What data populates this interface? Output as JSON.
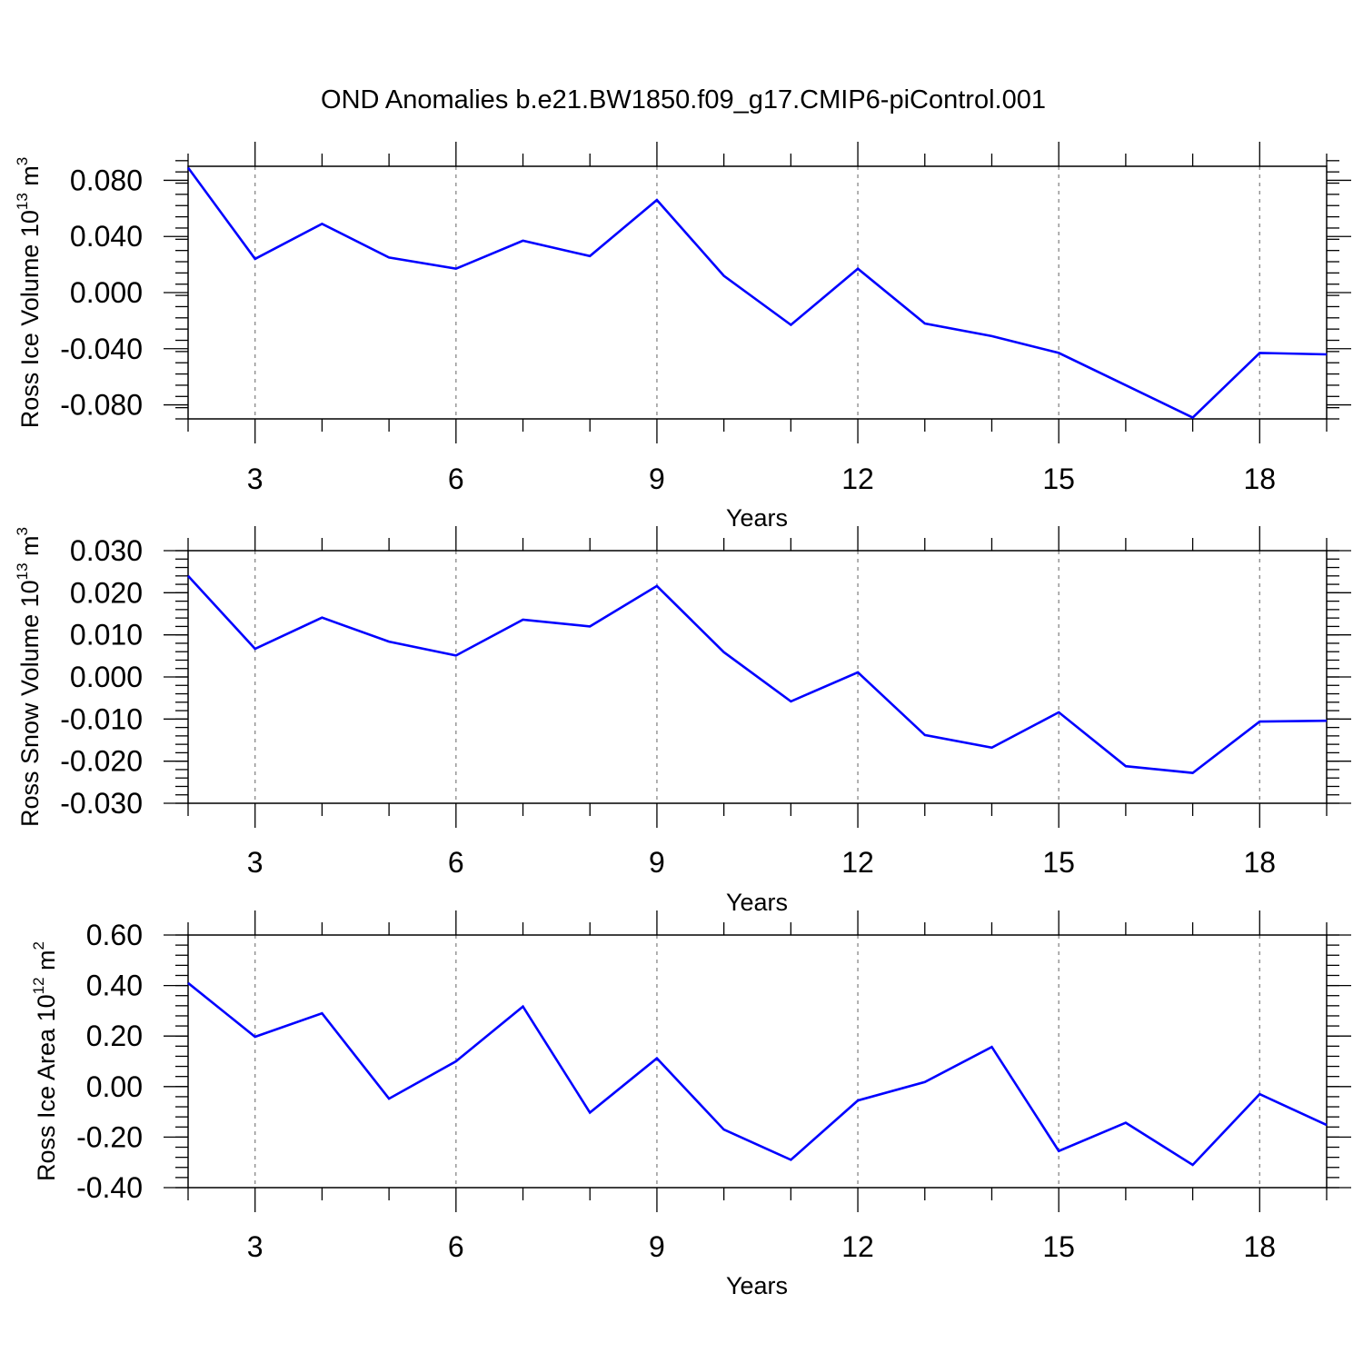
{
  "title": "OND Anomalies b.e21.BW1850.f09_g17.CMIP6-piControl.001",
  "colors": {
    "line": "#0000ff",
    "frame": "#000000",
    "grid": "#888888"
  },
  "chart_data": [
    {
      "type": "line",
      "xlabel": "Years",
      "ylabel": {
        "text": "Ross Ice Volume 10",
        "exp": "13",
        "unit": " m",
        "unit_exp": "3"
      },
      "xlim": [
        2,
        19
      ],
      "ylim": [
        -0.09,
        0.09
      ],
      "x_ticks": [
        3,
        6,
        9,
        12,
        15,
        18
      ],
      "x_tick_labels": [
        "3",
        "6",
        "9",
        "12",
        "15",
        "18"
      ],
      "y_ticks": [
        0.08,
        0.04,
        0.0,
        -0.04,
        -0.08
      ],
      "y_tick_labels": [
        "0.080",
        "0.040",
        "0.000",
        "-0.040",
        "-0.080"
      ],
      "y_minor_step": 0.008,
      "grid": "vertical dashed at major x ticks",
      "x": [
        2,
        3,
        4,
        5,
        6,
        7,
        8,
        9,
        10,
        11,
        12,
        13,
        14,
        15,
        16,
        17,
        18,
        19
      ],
      "series": [
        {
          "values": [
            0.089,
            0.024,
            0.049,
            0.025,
            0.017,
            0.037,
            0.026,
            0.066,
            0.012,
            -0.023,
            0.017,
            -0.022,
            -0.031,
            -0.043,
            -0.066,
            -0.089,
            -0.043,
            -0.044
          ]
        }
      ]
    },
    {
      "type": "line",
      "xlabel": "Years",
      "ylabel": {
        "text": "Ross Snow Volume 10",
        "exp": "13",
        "unit": " m",
        "unit_exp": "3"
      },
      "xlim": [
        2,
        19
      ],
      "ylim": [
        -0.03,
        0.03
      ],
      "x_ticks": [
        3,
        6,
        9,
        12,
        15,
        18
      ],
      "x_tick_labels": [
        "3",
        "6",
        "9",
        "12",
        "15",
        "18"
      ],
      "y_ticks": [
        0.03,
        0.02,
        0.01,
        0.0,
        -0.01,
        -0.02,
        -0.03
      ],
      "y_tick_labels": [
        "0.030",
        "0.020",
        "0.010",
        "0.000",
        "-0.010",
        "-0.020",
        "-0.030"
      ],
      "y_minor_step": 0.002,
      "grid": "vertical dashed at major x ticks",
      "x": [
        2,
        3,
        4,
        5,
        6,
        7,
        8,
        9,
        10,
        11,
        12,
        13,
        14,
        15,
        16,
        17,
        18,
        19
      ],
      "series": [
        {
          "values": [
            0.024,
            0.0067,
            0.0141,
            0.0084,
            0.0051,
            0.0136,
            0.012,
            0.0216,
            0.0059,
            -0.0058,
            0.0011,
            -0.0138,
            -0.0168,
            -0.0084,
            -0.0212,
            -0.0228,
            -0.0106,
            -0.0104
          ]
        }
      ]
    },
    {
      "type": "line",
      "xlabel": "Years",
      "ylabel": {
        "text": "Ross Ice Area 10",
        "exp": "12",
        "unit": " m",
        "unit_exp": "2"
      },
      "xlim": [
        2,
        19
      ],
      "ylim": [
        -0.4,
        0.6
      ],
      "x_ticks": [
        3,
        6,
        9,
        12,
        15,
        18
      ],
      "x_tick_labels": [
        "3",
        "6",
        "9",
        "12",
        "15",
        "18"
      ],
      "y_ticks": [
        0.6,
        0.4,
        0.2,
        0.0,
        -0.2,
        -0.4
      ],
      "y_tick_labels": [
        "0.60",
        "0.40",
        "0.20",
        "0.00",
        "-0.20",
        "-0.40"
      ],
      "y_minor_step": 0.04,
      "grid": "vertical dashed at major x ticks",
      "x": [
        2,
        3,
        4,
        5,
        6,
        7,
        8,
        9,
        10,
        11,
        12,
        13,
        14,
        15,
        16,
        17,
        18,
        19
      ],
      "series": [
        {
          "values": [
            0.41,
            0.197,
            0.29,
            -0.048,
            0.1,
            0.317,
            -0.103,
            0.112,
            -0.17,
            -0.29,
            -0.055,
            0.018,
            0.157,
            -0.255,
            -0.143,
            -0.31,
            -0.03,
            -0.152
          ]
        }
      ]
    }
  ]
}
